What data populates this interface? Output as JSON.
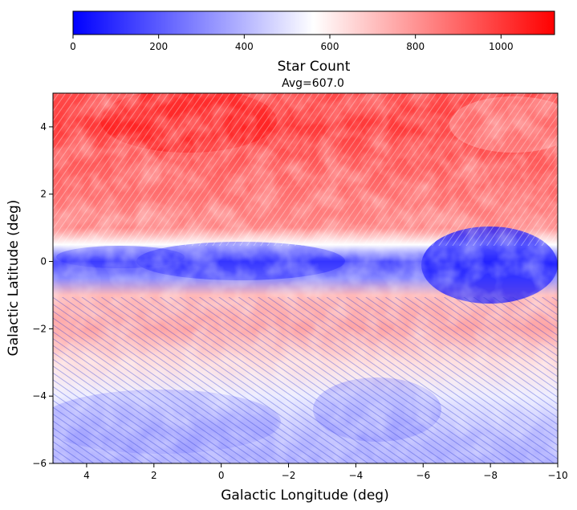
{
  "chart_data": {
    "type": "heatmap",
    "title": "Avg=607.0",
    "xlabel": "Galactic Longitude (deg)",
    "ylabel": "Galactic Latitude (deg)",
    "xlim": [
      5,
      -10
    ],
    "ylim": [
      -6,
      5
    ],
    "x_ticks": [
      4,
      2,
      0,
      -2,
      -4,
      -6,
      -8,
      -10
    ],
    "y_ticks": [
      -6,
      -4,
      -2,
      0,
      2,
      4
    ],
    "x_tick_labels": [
      "4",
      "2",
      "0",
      "−2",
      "−4",
      "−6",
      "−8",
      "−10"
    ],
    "y_tick_labels": [
      "−6",
      "−4",
      "−2",
      "0",
      "2",
      "4"
    ],
    "colorbar": {
      "label": "Star Count",
      "orientation": "horizontal",
      "placement": "top",
      "colormap": "bwr",
      "range": [
        0,
        1125
      ],
      "ticks": [
        0,
        200,
        400,
        600,
        800,
        1000
      ],
      "tick_labels": [
        "0",
        "200",
        "400",
        "600",
        "800",
        "1000"
      ],
      "low_color": "#0000ff",
      "mid_color": "#ffffff",
      "high_color": "#ff0000"
    },
    "latitude_profile": {
      "description_units": "approximate star count by Galactic latitude (deg)",
      "lat": [
        5,
        4,
        3,
        2,
        1,
        0.5,
        0,
        -0.5,
        -1,
        -2,
        -3,
        -4,
        -5,
        -6
      ],
      "count": [
        960,
        1000,
        930,
        880,
        830,
        560,
        150,
        300,
        720,
        760,
        640,
        520,
        420,
        380
      ]
    }
  }
}
